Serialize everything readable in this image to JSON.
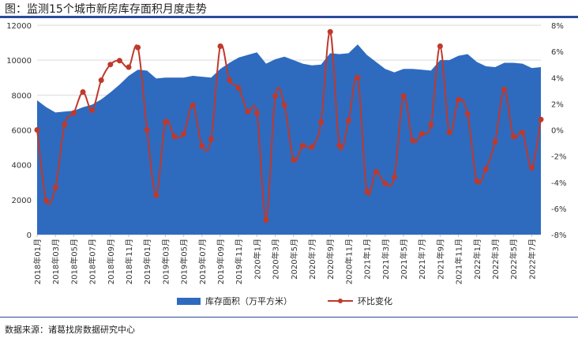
{
  "title": "图：监测15个城市新房库存面积月度走势",
  "source": "数据来源：诸葛找房数据研究中心",
  "colors": {
    "area": "#2e6bbf",
    "line": "#c0392b",
    "grid": "#d9d9d9",
    "axis": "#bfbfbf"
  },
  "chart_data": {
    "type": "area",
    "title": "图：监测15个城市新房库存面积月度走势",
    "x": [
      "2018年01月",
      "2018年02月",
      "2018年03月",
      "2018年04月",
      "2018年05月",
      "2018年06月",
      "2018年07月",
      "2018年08月",
      "2018年09月",
      "2018年10月",
      "2018年11月",
      "2018年12月",
      "2019年01月",
      "2019年02月",
      "2019年03月",
      "2019年04月",
      "2019年05月",
      "2019年06月",
      "2019年07月",
      "2019年08月",
      "2019年09月",
      "2019年10月",
      "2019年11月",
      "2019年12月",
      "2020年1月",
      "2020年2月",
      "2020年3月",
      "2020年4月",
      "2020年5月",
      "2020年6月",
      "2020年7月",
      "2020年8月",
      "2020年9月",
      "2020年10月",
      "2020年11月",
      "2020年12月",
      "2021年1月",
      "2021年2月",
      "2021年3月",
      "2021年4月",
      "2021年5月",
      "2021年6月",
      "2021年7月",
      "2021年8月",
      "2021年9月",
      "2021年10月",
      "2021年11月",
      "2021年12月",
      "2022年1月",
      "2022年2月",
      "2022年3月",
      "2022年4月",
      "2022年5月",
      "2022年6月",
      "2022年7月",
      "2022年8月"
    ],
    "x_tick_labels": [
      "2018年01月",
      "2018年03月",
      "2018年05月",
      "2018年07月",
      "2018年09月",
      "2018年11月",
      "2019年01月",
      "2019年03月",
      "2019年05月",
      "2019年07月",
      "2019年09月",
      "2019年11月",
      "2020年1月",
      "2020年3月",
      "2020年5月",
      "2020年7月",
      "2020年9月",
      "2020年11月",
      "2021年1月",
      "2021年3月",
      "2021年5月",
      "2021年7月",
      "2021年9月",
      "2021年11月",
      "2022年1月",
      "2022年3月",
      "2022年5月",
      "2022年7月"
    ],
    "series": [
      {
        "name": "库存面积（万平方米）",
        "type": "area",
        "axis": "left",
        "values": [
          7700,
          7300,
          7000,
          7050,
          7100,
          7300,
          7450,
          7750,
          8150,
          8600,
          9100,
          9450,
          9400,
          8950,
          9000,
          9000,
          9000,
          9100,
          9050,
          9000,
          9500,
          9850,
          10150,
          10300,
          10450,
          9800,
          10050,
          10200,
          10000,
          9800,
          9700,
          9750,
          10400,
          10350,
          10400,
          10900,
          10300,
          9900,
          9500,
          9300,
          9500,
          9500,
          9450,
          9400,
          10000,
          10000,
          10250,
          10350,
          9900,
          9650,
          9600,
          9850,
          9850,
          9800,
          9550,
          9600
        ]
      },
      {
        "name": "环比变化",
        "type": "line",
        "axis": "right",
        "values": [
          0.0,
          -5.4,
          -4.4,
          0.4,
          1.3,
          2.9,
          1.5,
          3.8,
          5.0,
          5.3,
          4.8,
          6.3,
          0.0,
          -5.0,
          0.6,
          -0.5,
          -0.3,
          1.9,
          -1.2,
          -0.7,
          6.4,
          3.8,
          3.2,
          1.4,
          1.3,
          -6.9,
          2.6,
          1.9,
          -2.3,
          -1.2,
          -1.3,
          0.6,
          7.5,
          -1.2,
          0.7,
          4.0,
          -4.7,
          -3.2,
          -4.1,
          -3.6,
          2.6,
          -0.8,
          -0.3,
          0.4,
          6.4,
          -0.2,
          2.3,
          1.2,
          -3.9,
          -3.0,
          -0.9,
          3.1,
          -0.5,
          -0.2,
          -2.9,
          0.8
        ]
      }
    ],
    "y_left": {
      "ylim": [
        0,
        12000
      ],
      "ticks": [
        "0",
        "2000",
        "4000",
        "6000",
        "8000",
        "10000",
        "12000"
      ]
    },
    "y_right": {
      "ylim": [
        -8,
        8
      ],
      "ticks": [
        "-8%",
        "-6%",
        "-4%",
        "-2%",
        "0%",
        "2%",
        "4%",
        "6%",
        "8%"
      ]
    },
    "legend": {
      "position": "bottom",
      "entries": [
        "库存面积（万平方米）",
        "环比变化"
      ]
    },
    "grid": true
  }
}
